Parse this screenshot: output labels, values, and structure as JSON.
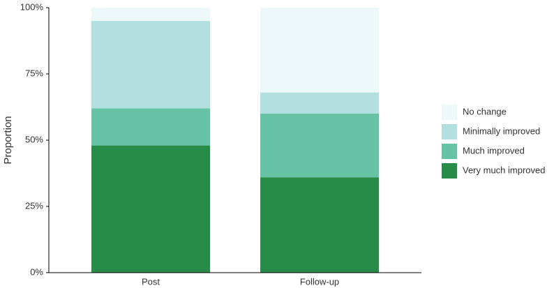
{
  "chart_data": {
    "type": "stacked-bar",
    "y_label": "Proportion",
    "categories": [
      "Post",
      "Follow-up"
    ],
    "series": [
      {
        "name": "Very much improved",
        "color": "#278c47",
        "values": [
          48,
          36
        ]
      },
      {
        "name": "Much improved",
        "color": "#66c2a4",
        "values": [
          14,
          24
        ]
      },
      {
        "name": "Minimally improved",
        "color": "#b2e0e0",
        "values": [
          33,
          8
        ]
      },
      {
        "name": "No change",
        "color": "#edf8fb",
        "values": [
          5,
          32
        ]
      }
    ],
    "ylim": [
      0,
      100
    ],
    "yticks": [
      {
        "value": 0,
        "label": "0%"
      },
      {
        "value": 25,
        "label": "25%"
      },
      {
        "value": 50,
        "label": "50%"
      },
      {
        "value": 75,
        "label": "75%"
      },
      {
        "value": 100,
        "label": "100%"
      }
    ],
    "legend": "right"
  }
}
